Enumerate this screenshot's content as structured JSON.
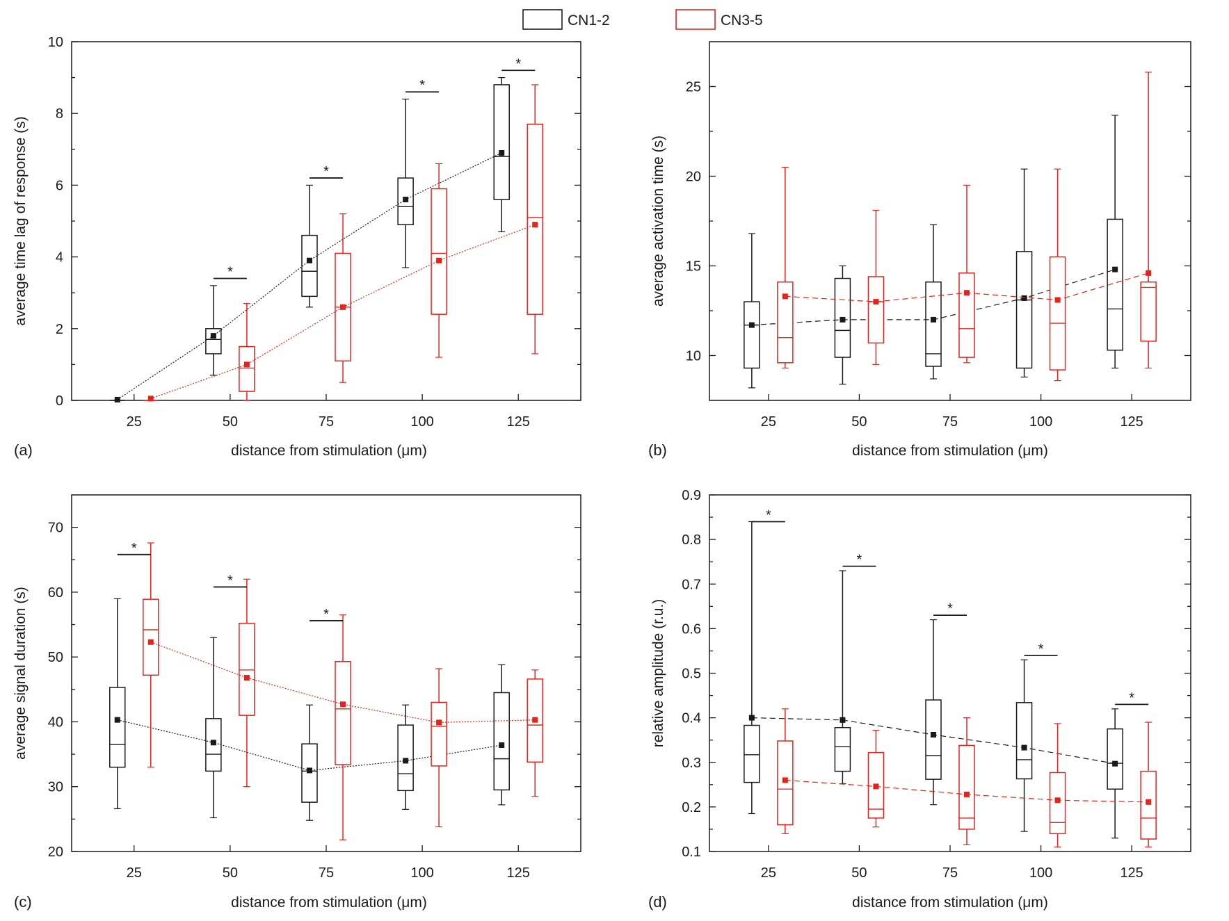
{
  "legend": {
    "items": [
      {
        "label": "CN1-2",
        "color": "#1a1a1a"
      },
      {
        "label": "CN3-5",
        "color": "#e8221b"
      }
    ]
  },
  "chart_data": [
    {
      "type": "box",
      "panel_label": "(a)",
      "xlabel": "distance from stimulation (μm)",
      "ylabel": "average time lag of response (s)",
      "categories": [
        "25",
        "50",
        "75",
        "100",
        "125"
      ],
      "ylim": [
        0,
        10
      ],
      "yticks": [
        "0",
        "2",
        "4",
        "6",
        "8",
        "10"
      ],
      "mean_line_style": "dotted",
      "series": [
        {
          "name": "CN1-2",
          "color": "#1a1a1a",
          "boxes": [
            {
              "min": 0,
              "q1": 0,
              "median": 0,
              "q3": 0,
              "max": 0,
              "mean": 0.02
            },
            {
              "min": 0.7,
              "q1": 1.3,
              "median": 1.7,
              "q3": 2.0,
              "max": 3.2,
              "mean": 1.8
            },
            {
              "min": 2.6,
              "q1": 2.9,
              "median": 3.6,
              "q3": 4.6,
              "max": 6.0,
              "mean": 3.9
            },
            {
              "min": 3.7,
              "q1": 4.9,
              "median": 5.4,
              "q3": 6.2,
              "max": 8.4,
              "mean": 5.6
            },
            {
              "min": 4.7,
              "q1": 5.6,
              "median": 6.8,
              "q3": 8.8,
              "max": 9.0,
              "mean": 6.9
            }
          ]
        },
        {
          "name": "CN3-5",
          "color": "#e8221b",
          "boxes": [
            {
              "min": 0,
              "q1": 0,
              "median": 0,
              "q3": 0,
              "max": 0,
              "mean": 0.05
            },
            {
              "min": 0.0,
              "q1": 0.25,
              "median": 0.9,
              "q3": 1.5,
              "max": 2.7,
              "mean": 1.0
            },
            {
              "min": 0.5,
              "q1": 1.1,
              "median": 2.6,
              "q3": 4.1,
              "max": 5.2,
              "mean": 2.6
            },
            {
              "min": 1.2,
              "q1": 2.4,
              "median": 4.1,
              "q3": 5.9,
              "max": 6.6,
              "mean": 3.9
            },
            {
              "min": 1.3,
              "q1": 2.4,
              "median": 5.1,
              "q3": 7.7,
              "max": 8.8,
              "mean": 4.9
            }
          ]
        }
      ],
      "significance": [
        {
          "category_index": 1,
          "y": 3.4,
          "label": "*"
        },
        {
          "category_index": 2,
          "y": 6.2,
          "label": "*"
        },
        {
          "category_index": 3,
          "y": 8.6,
          "label": "*"
        },
        {
          "category_index": 4,
          "y": 9.2,
          "label": "*"
        }
      ]
    },
    {
      "type": "box",
      "panel_label": "(b)",
      "xlabel": "distance from stimulation (μm)",
      "ylabel": "average activation time (s)",
      "categories": [
        "25",
        "50",
        "75",
        "100",
        "125"
      ],
      "ylim": [
        7.5,
        27.5
      ],
      "yticks": [
        "10",
        "15",
        "20",
        "25"
      ],
      "mean_line_style": "dashed",
      "series": [
        {
          "name": "CN1-2",
          "color": "#1a1a1a",
          "boxes": [
            {
              "min": 8.2,
              "q1": 9.3,
              "median": 11.7,
              "q3": 13.0,
              "max": 16.8,
              "mean": 11.7
            },
            {
              "min": 8.4,
              "q1": 9.9,
              "median": 11.4,
              "q3": 14.3,
              "max": 15.0,
              "mean": 12.0
            },
            {
              "min": 8.7,
              "q1": 9.4,
              "median": 10.1,
              "q3": 14.1,
              "max": 17.3,
              "mean": 12.0
            },
            {
              "min": 8.8,
              "q1": 9.3,
              "median": 13.1,
              "q3": 15.8,
              "max": 20.4,
              "mean": 13.2
            },
            {
              "min": 9.3,
              "q1": 10.3,
              "median": 12.6,
              "q3": 17.6,
              "max": 23.4,
              "mean": 14.8
            }
          ]
        },
        {
          "name": "CN3-5",
          "color": "#e8221b",
          "boxes": [
            {
              "min": 9.3,
              "q1": 9.6,
              "median": 11.0,
              "q3": 14.1,
              "max": 20.5,
              "mean": 13.3
            },
            {
              "min": 9.5,
              "q1": 10.7,
              "median": 13.0,
              "q3": 14.4,
              "max": 18.1,
              "mean": 13.0
            },
            {
              "min": 9.6,
              "q1": 9.9,
              "median": 11.5,
              "q3": 14.6,
              "max": 19.5,
              "mean": 13.5
            },
            {
              "min": 8.6,
              "q1": 9.2,
              "median": 11.8,
              "q3": 15.5,
              "max": 20.4,
              "mean": 13.1
            },
            {
              "min": 9.3,
              "q1": 10.8,
              "median": 13.8,
              "q3": 14.1,
              "max": 25.8,
              "mean": 14.6
            }
          ]
        }
      ],
      "significance": []
    },
    {
      "type": "box",
      "panel_label": "(c)",
      "xlabel": "distance from stimulation (μm)",
      "ylabel": "average signal duration (s)",
      "categories": [
        "25",
        "50",
        "75",
        "100",
        "125"
      ],
      "ylim": [
        20,
        75
      ],
      "yticks": [
        "20",
        "30",
        "40",
        "50",
        "60",
        "70"
      ],
      "mean_line_style": "dotted",
      "series": [
        {
          "name": "CN1-2",
          "color": "#1a1a1a",
          "boxes": [
            {
              "min": 26.6,
              "q1": 33.0,
              "median": 36.5,
              "q3": 45.3,
              "max": 59.0,
              "mean": 40.3
            },
            {
              "min": 25.2,
              "q1": 32.4,
              "median": 35.0,
              "q3": 40.5,
              "max": 53.0,
              "mean": 36.8
            },
            {
              "min": 24.8,
              "q1": 27.6,
              "median": 32.4,
              "q3": 36.6,
              "max": 42.6,
              "mean": 32.5
            },
            {
              "min": 26.5,
              "q1": 29.4,
              "median": 32.0,
              "q3": 39.5,
              "max": 42.6,
              "mean": 34.0
            },
            {
              "min": 27.2,
              "q1": 29.5,
              "median": 34.3,
              "q3": 44.5,
              "max": 48.8,
              "mean": 36.4
            }
          ]
        },
        {
          "name": "CN3-5",
          "color": "#e8221b",
          "boxes": [
            {
              "min": 33.0,
              "q1": 47.2,
              "median": 54.2,
              "q3": 58.9,
              "max": 67.6,
              "mean": 52.3
            },
            {
              "min": 30.0,
              "q1": 41.0,
              "median": 48.0,
              "q3": 55.2,
              "max": 62.0,
              "mean": 46.8
            },
            {
              "min": 21.8,
              "q1": 33.4,
              "median": 42.0,
              "q3": 49.3,
              "max": 56.5,
              "mean": 42.7
            },
            {
              "min": 23.8,
              "q1": 33.2,
              "median": 39.3,
              "q3": 43.0,
              "max": 48.2,
              "mean": 39.9
            },
            {
              "min": 28.5,
              "q1": 33.8,
              "median": 39.5,
              "q3": 46.6,
              "max": 48.0,
              "mean": 40.3
            }
          ]
        }
      ],
      "significance": [
        {
          "category_index": 0,
          "y": 65.8,
          "label": "*"
        },
        {
          "category_index": 1,
          "y": 60.8,
          "label": "*"
        },
        {
          "category_index": 2,
          "y": 55.6,
          "label": "*"
        }
      ]
    },
    {
      "type": "box",
      "panel_label": "(d)",
      "xlabel": "distance from stimulation (μm)",
      "ylabel": "relative amplitude (r.u.)",
      "categories": [
        "25",
        "50",
        "75",
        "100",
        "125"
      ],
      "ylim": [
        0.1,
        0.9
      ],
      "yticks": [
        "0.1",
        "0.2",
        "0.3",
        "0.4",
        "0.5",
        "0.6",
        "0.7",
        "0.8",
        "0.9"
      ],
      "mean_line_style": "dashed",
      "series": [
        {
          "name": "CN1-2",
          "color": "#1a1a1a",
          "boxes": [
            {
              "min": 0.185,
              "q1": 0.255,
              "median": 0.317,
              "q3": 0.383,
              "max": 0.84,
              "mean": 0.4
            },
            {
              "min": 0.252,
              "q1": 0.28,
              "median": 0.335,
              "q3": 0.378,
              "max": 0.73,
              "mean": 0.395
            },
            {
              "min": 0.205,
              "q1": 0.262,
              "median": 0.315,
              "q3": 0.44,
              "max": 0.62,
              "mean": 0.362
            },
            {
              "min": 0.145,
              "q1": 0.263,
              "median": 0.306,
              "q3": 0.434,
              "max": 0.53,
              "mean": 0.333
            },
            {
              "min": 0.13,
              "q1": 0.24,
              "median": 0.298,
              "q3": 0.375,
              "max": 0.42,
              "mean": 0.297
            }
          ]
        },
        {
          "name": "CN3-5",
          "color": "#e8221b",
          "boxes": [
            {
              "min": 0.14,
              "q1": 0.16,
              "median": 0.24,
              "q3": 0.348,
              "max": 0.42,
              "mean": 0.26
            },
            {
              "min": 0.155,
              "q1": 0.175,
              "median": 0.195,
              "q3": 0.322,
              "max": 0.372,
              "mean": 0.246
            },
            {
              "min": 0.115,
              "q1": 0.15,
              "median": 0.175,
              "q3": 0.338,
              "max": 0.4,
              "mean": 0.228
            },
            {
              "min": 0.11,
              "q1": 0.14,
              "median": 0.165,
              "q3": 0.277,
              "max": 0.387,
              "mean": 0.215
            },
            {
              "min": 0.11,
              "q1": 0.128,
              "median": 0.175,
              "q3": 0.28,
              "max": 0.39,
              "mean": 0.211
            }
          ]
        }
      ],
      "significance": [
        {
          "category_index": 0,
          "y": 0.84,
          "label": "*"
        },
        {
          "category_index": 1,
          "y": 0.74,
          "label": "*"
        },
        {
          "category_index": 2,
          "y": 0.63,
          "label": "*"
        },
        {
          "category_index": 3,
          "y": 0.54,
          "label": "*"
        },
        {
          "category_index": 4,
          "y": 0.43,
          "label": "*"
        }
      ]
    }
  ]
}
